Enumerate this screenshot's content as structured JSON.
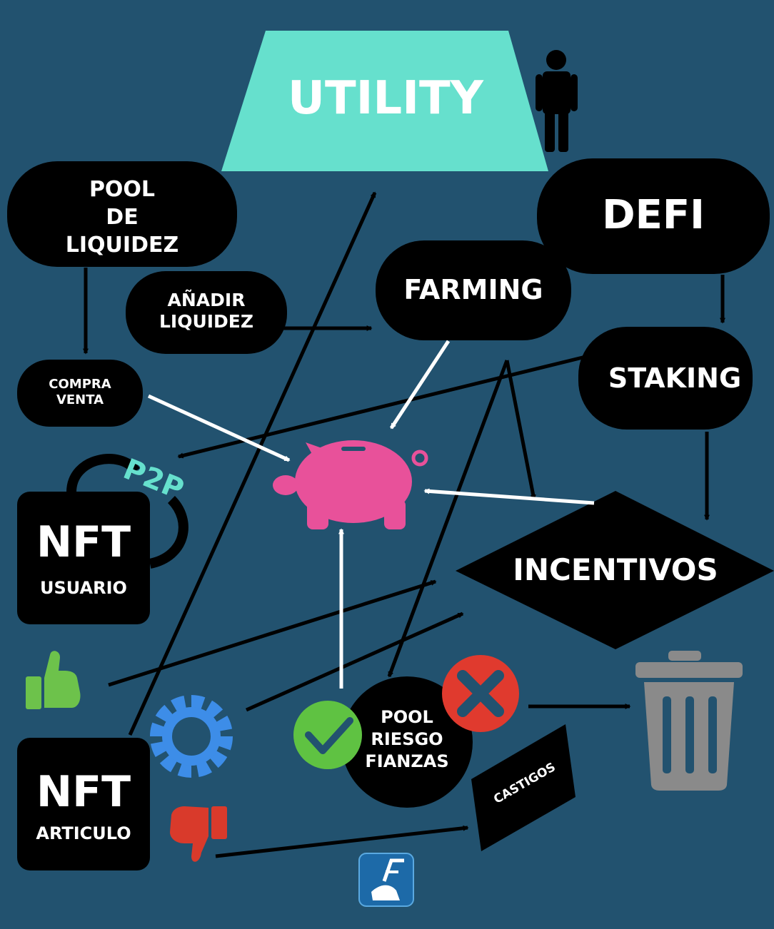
{
  "title": "UTILITY",
  "nodes": {
    "pool_liquidez": [
      "POOL",
      "DE",
      "LIQUIDEZ"
    ],
    "anadir_liquidez": [
      "AÑADIR",
      "LIQUIDEZ"
    ],
    "compra_venta": [
      "COMPRA",
      "VENTA"
    ],
    "defi": "DEFI",
    "farming": "FARMING",
    "staking": "STAKING",
    "incentivos": "INCENTIVOS",
    "p2p": "P2P",
    "nft_usuario": {
      "big": "NFT",
      "small": "USUARIO"
    },
    "nft_articulo": {
      "big": "NFT",
      "small": "ARTICULO"
    },
    "pool_riesgo": [
      "POOL",
      "RIESGO",
      "FIANZAS"
    ],
    "castigos": "CASTIGOS"
  },
  "colors": {
    "background": "#22526f",
    "utility_fill": "#66e0cd",
    "node_fill": "#000000",
    "piggy": "#e8519a",
    "thumb_up": "#6dc24b",
    "thumb_down": "#d93a2b",
    "gear": "#3d8de8",
    "check": "#5fc242",
    "cross": "#e03a2e",
    "trash": "#8a8a8a",
    "p2p": "#66e0cd"
  },
  "icons": [
    "person-icon",
    "piggy-bank-icon",
    "thumbs-up-icon",
    "gear-icon",
    "thumbs-down-icon",
    "check-icon",
    "cross-icon",
    "trash-icon",
    "logo-icon"
  ]
}
